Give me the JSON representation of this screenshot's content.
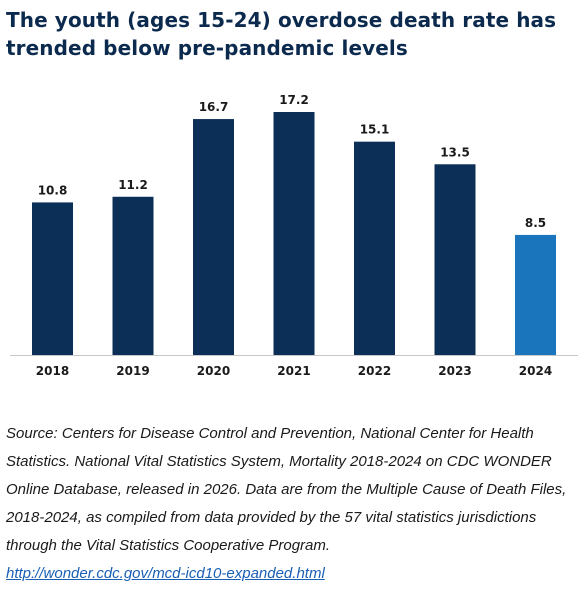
{
  "title": "The youth (ages 15-24) overdose death rate has trended below pre-pandemic levels",
  "source": {
    "text": "Source: Centers for Disease Control and Prevention, National Center for Health Statistics. National Vital Statistics System, Mortality 2018-2024 on CDC WONDER Online Database, released in 2026. Data are from the Multiple Cause of Death Files, 2018-2024, as compiled from data provided by the 57 vital statistics jurisdictions through the Vital Statistics Cooperative Program.",
    "link": "http://wonder.cdc.gov/mcd-icd10-expanded.html"
  },
  "colors": {
    "bar": "#0b2f57",
    "highlight": "#1b75bc",
    "axis": "#c8c8c8",
    "label": "#1a1a1a"
  },
  "chart_data": {
    "type": "bar",
    "categories": [
      "2018",
      "2019",
      "2020",
      "2021",
      "2022",
      "2023",
      "2024"
    ],
    "values": [
      10.8,
      11.2,
      16.7,
      17.2,
      15.1,
      13.5,
      8.5
    ],
    "data_labels": [
      "10.8",
      "11.2",
      "16.7",
      "17.2",
      "15.1",
      "13.5",
      "8.5"
    ],
    "highlight_category": "2024",
    "ylim": [
      0,
      17.2
    ],
    "grid": false,
    "legend": "none"
  }
}
